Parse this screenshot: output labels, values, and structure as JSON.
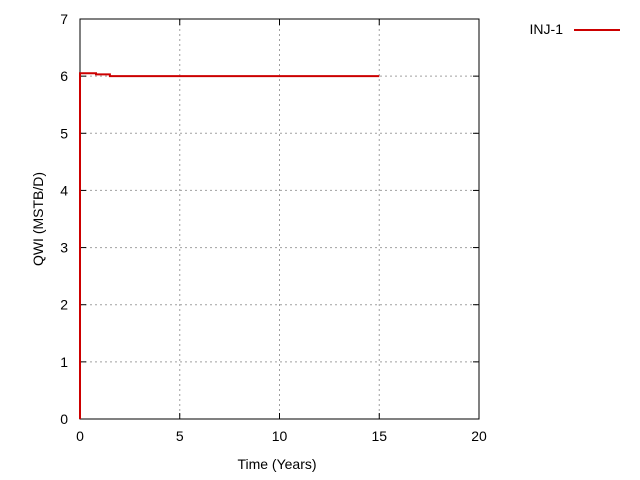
{
  "chart_data": {
    "type": "line",
    "title": "",
    "xlabel": "Time (Years)",
    "ylabel": "QWI (MSTB/D)",
    "xlim": [
      0,
      20
    ],
    "ylim": [
      0,
      7
    ],
    "xticks": [
      0,
      5,
      10,
      15,
      20
    ],
    "yticks": [
      0,
      1,
      2,
      3,
      4,
      5,
      6,
      7
    ],
    "grid": true,
    "legend_position": "top-right, outside plot",
    "series": [
      {
        "name": "INJ-1",
        "color": "#cc0000",
        "x": [
          0,
          0,
          0.8,
          0.8,
          1.5,
          1.5,
          15
        ],
        "y": [
          0,
          6.05,
          6.05,
          6.03,
          6.03,
          6.0,
          6.0
        ]
      }
    ]
  }
}
